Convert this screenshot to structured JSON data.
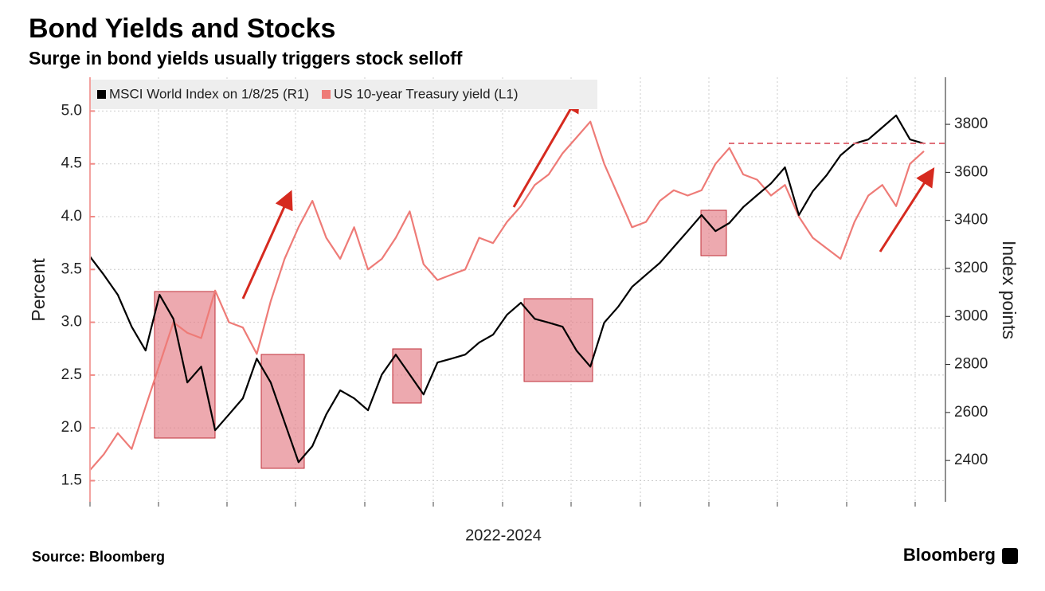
{
  "chart_data": {
    "type": "line",
    "title": "Bond Yields and Stocks",
    "subtitle": "Surge in bond yields usually triggers stock selloff",
    "xlabel": "2022-2024",
    "ylabel": "Percent",
    "y2label": "Index points",
    "source": "Source: Bloomberg",
    "brand": "Bloomberg",
    "ylim": [
      1.3,
      5.32
    ],
    "yticks": [
      1.5,
      {
        "value": 2,
        "label": "2.0"
      },
      2.5,
      {
        "value": 3,
        "label": "3.0"
      },
      3.5,
      {
        "value": 4,
        "label": "4.0"
      },
      4.5,
      {
        "value": 5,
        "label": "5.0"
      }
    ],
    "y2lim": [
      2228,
      3996
    ],
    "y2ticks": [
      2400,
      2600,
      2800,
      3000,
      3200,
      3400,
      3600,
      3800
    ],
    "grid": true,
    "legend": "top-left",
    "series": [
      {
        "name": "MSCI World Index on 1/8/25 (R1)",
        "color": "#000000",
        "axis": "y2",
        "values": [
          3249,
          3173,
          3090,
          2957,
          2858,
          3090,
          2990,
          2725,
          2791,
          2526,
          2592,
          2659,
          2824,
          2725,
          2559,
          2393,
          2460,
          2592,
          2692,
          2659,
          2609,
          2758,
          2841,
          2758,
          2675,
          2808,
          2824,
          2841,
          2891,
          2924,
          3007,
          3057,
          2990,
          2974,
          2957,
          2858,
          2791,
          2974,
          3040,
          3123,
          3173,
          3223,
          3289,
          3355,
          3422,
          3355,
          3389,
          3455,
          3505,
          3554,
          3621,
          3422,
          3521,
          3588,
          3671,
          3720,
          3737,
          3787,
          3837,
          3737,
          3720
        ]
      },
      {
        "name": "US 10-year Treasury yield (L1)",
        "color": "#ee7b77",
        "axis": "y",
        "values": [
          1.6,
          1.75,
          1.95,
          1.8,
          2.2,
          2.6,
          3.0,
          2.9,
          2.85,
          3.3,
          3.0,
          2.95,
          2.7,
          3.2,
          3.6,
          3.9,
          4.15,
          3.8,
          3.6,
          3.9,
          3.5,
          3.6,
          3.8,
          4.05,
          3.55,
          3.4,
          3.45,
          3.5,
          3.8,
          3.75,
          3.95,
          4.1,
          4.3,
          4.4,
          4.6,
          4.75,
          4.9,
          4.5,
          4.2,
          3.9,
          3.95,
          4.15,
          4.25,
          4.2,
          4.25,
          4.5,
          4.65,
          4.4,
          4.35,
          4.2,
          4.3,
          4.0,
          3.8,
          3.7,
          3.6,
          3.95,
          4.2,
          4.3,
          4.1,
          4.5,
          4.62
        ]
      }
    ]
  }
}
